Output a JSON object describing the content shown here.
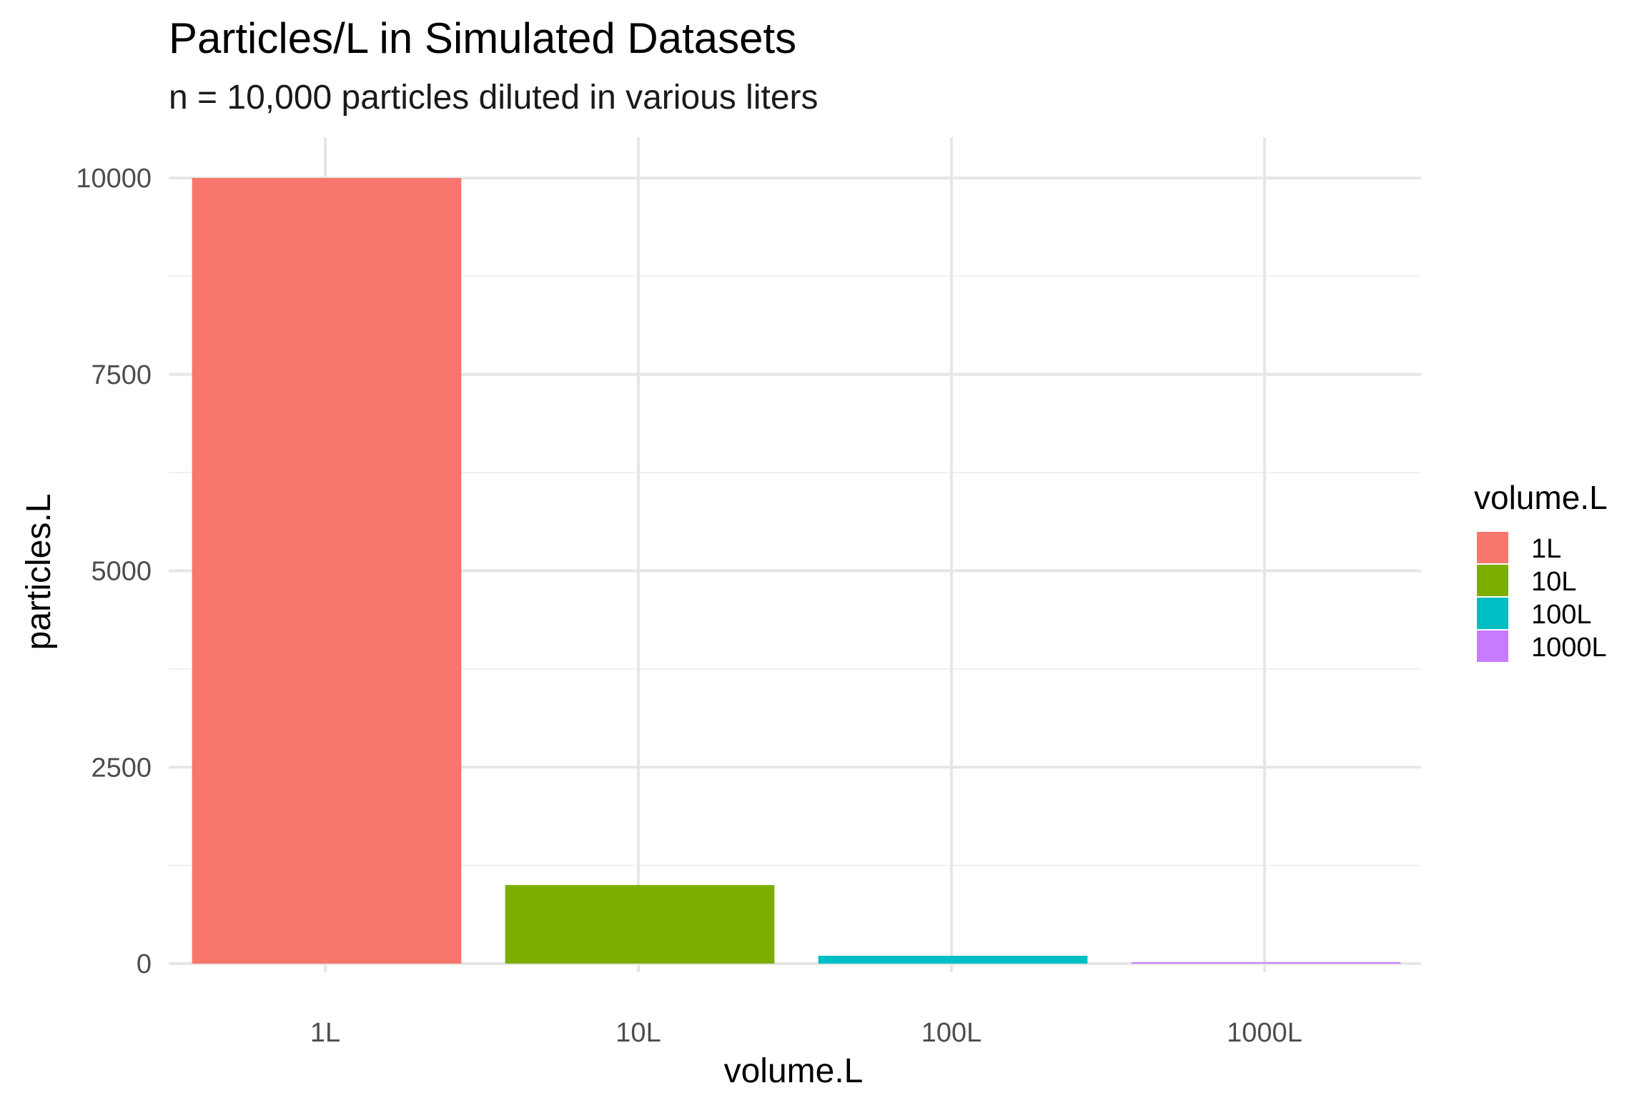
{
  "chart_data": {
    "type": "bar",
    "title": "Particles/L in Simulated Datasets",
    "subtitle": "n = 10,000 particles diluted in various liters",
    "xlabel": "volume.L",
    "ylabel": "particles.L",
    "categories": [
      "1L",
      "10L",
      "100L",
      "1000L"
    ],
    "values": [
      10000,
      1000,
      100,
      10
    ],
    "colors": [
      "#F8766D",
      "#7CAE00",
      "#00BFC4",
      "#C77CFF"
    ],
    "ylim": [
      0,
      10000
    ],
    "yticks": [
      0,
      2500,
      5000,
      7500,
      10000
    ],
    "ytick_labels": [
      "0",
      "2500",
      "5000",
      "7500",
      "10000"
    ],
    "grid": true,
    "legend": {
      "title": "volume.L",
      "placement": "right",
      "entries": [
        "1L",
        "10L",
        "100L",
        "1000L"
      ]
    }
  }
}
